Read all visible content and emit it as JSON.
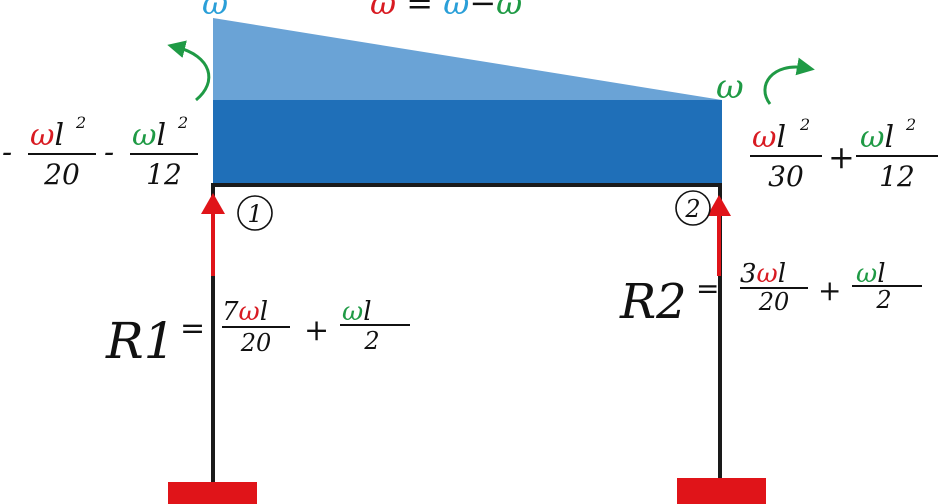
{
  "colors": {
    "load_light": "#6aa3d6",
    "load_dark": "#1f6fb8",
    "frame": "#1a1a1a",
    "support": "#e01419",
    "reaction_arrow": "#e01419",
    "moment_arrow": "#1f9a45",
    "red_text": "#d81b22",
    "green_text": "#1f9a45",
    "blue_text": "#2a9fd8",
    "black_text": "#111111"
  },
  "top_label": {
    "omega_left": "ω",
    "equation": {
      "lhs": "ω",
      "eq": " = ",
      "a": "ω",
      "minus": "−",
      "b": "ω"
    }
  },
  "moment_right_symbol": "ω",
  "nodes": {
    "node1": "1",
    "node2": "2"
  },
  "moment_left": {
    "sign1": "-",
    "t1": {
      "num_red": "ω",
      "num_black": "l",
      "exp": "2",
      "den": "20"
    },
    "sign2": "-",
    "t2": {
      "num_green": "ω",
      "num_black": "l",
      "exp": "2",
      "den": "12"
    }
  },
  "moment_right": {
    "t1": {
      "num_red": "ω",
      "num_black": "l",
      "exp": "2",
      "den": "30"
    },
    "plus": "+",
    "t2": {
      "num_green": "ω",
      "num_black": "l",
      "exp": "2",
      "den": "12"
    }
  },
  "reaction_1": {
    "label": "R1",
    "eq": "=",
    "t1": {
      "coef": "7",
      "num_red": "ω",
      "num_black": "l",
      "den": "20"
    },
    "plus": "+",
    "t2": {
      "num_green": "ω",
      "num_black": "l",
      "den": "2"
    }
  },
  "reaction_2": {
    "label": "R2",
    "eq": "=",
    "t1": {
      "coef": "3",
      "num_red": "ω",
      "num_black": "l",
      "den": "20"
    },
    "plus": "+",
    "t2": {
      "num_green": "ω",
      "num_black": "l",
      "den": "2"
    }
  }
}
